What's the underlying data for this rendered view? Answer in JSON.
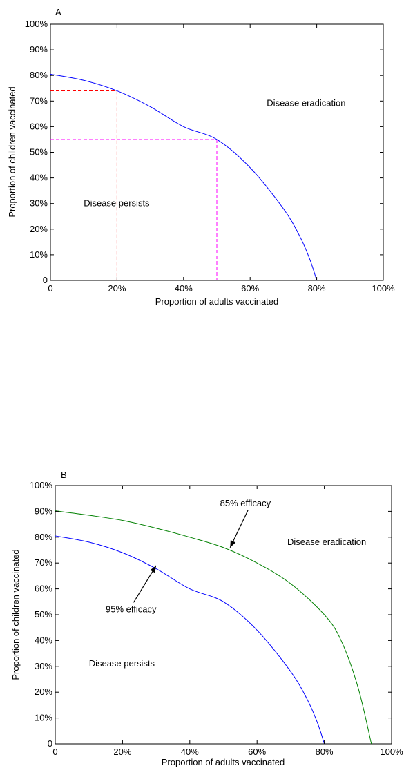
{
  "chart_data": [
    {
      "type": "line",
      "panel_label": "A",
      "xlabel": "Proportion of adults vaccinated",
      "ylabel": "Proportion of children vaccinated",
      "xlim": [
        0,
        100
      ],
      "ylim": [
        0,
        100
      ],
      "x_ticks": [
        0,
        20,
        40,
        60,
        80,
        100
      ],
      "x_tick_labels": [
        "0",
        "20%",
        "40%",
        "60%",
        "80%",
        "100%"
      ],
      "y_ticks": [
        0,
        10,
        20,
        30,
        40,
        50,
        60,
        70,
        80,
        90,
        100
      ],
      "y_tick_labels": [
        "0",
        "10%",
        "20%",
        "30%",
        "40%",
        "50%",
        "60%",
        "70%",
        "80%",
        "90%",
        "100%"
      ],
      "grid": false,
      "series": [
        {
          "color": "#0000ff",
          "x": [
            0,
            10,
            20,
            30,
            40,
            50,
            60,
            70,
            75,
            78,
            80
          ],
          "y": [
            80.5,
            78.1,
            74,
            67.8,
            60,
            55,
            44,
            28,
            17,
            8,
            0
          ]
        }
      ],
      "reference_lines": [
        {
          "color": "#ff0000",
          "x": 20,
          "y": 74
        },
        {
          "color": "#ff00ff",
          "x": 50,
          "y": 55
        }
      ],
      "annotations": [
        {
          "text": "Disease eradication",
          "x": 65,
          "y": 68
        },
        {
          "text": "Disease persists",
          "x": 10,
          "y": 29
        }
      ]
    },
    {
      "type": "line",
      "panel_label": "B",
      "xlabel": "Proportion of adults vaccinated",
      "ylabel": "Proportion of children vaccinated",
      "xlim": [
        0,
        100
      ],
      "ylim": [
        0,
        100
      ],
      "x_ticks": [
        0,
        20,
        40,
        60,
        80,
        100
      ],
      "x_tick_labels": [
        "0",
        "20%",
        "40%",
        "60%",
        "80%",
        "100%"
      ],
      "y_ticks": [
        0,
        10,
        20,
        30,
        40,
        50,
        60,
        70,
        80,
        90,
        100
      ],
      "y_tick_labels": [
        "0",
        "10%",
        "20%",
        "30%",
        "40%",
        "50%",
        "60%",
        "70%",
        "80%",
        "90%",
        "100%"
      ],
      "grid": false,
      "series": [
        {
          "color": "#008000",
          "x": [
            0,
            10,
            20,
            30,
            40,
            50,
            60,
            70,
            80,
            85,
            90,
            94
          ],
          "y": [
            90.2,
            88.5,
            86.5,
            83.5,
            80,
            76,
            70,
            62,
            50,
            40,
            22,
            0
          ]
        },
        {
          "color": "#0000ff",
          "x": [
            0,
            10,
            20,
            30,
            40,
            50,
            60,
            70,
            75,
            78,
            80
          ],
          "y": [
            80.5,
            78.1,
            74,
            67.8,
            60,
            55,
            44,
            28,
            17,
            8,
            0
          ]
        }
      ],
      "annotations": [
        {
          "text": "85% efficacy",
          "x": 49,
          "y": 92,
          "arrow_to": [
            52,
            76
          ]
        },
        {
          "text": "95% efficacy",
          "x": 15,
          "y": 51,
          "arrow_to": [
            30,
            69
          ]
        },
        {
          "text": "Disease eradication",
          "x": 69,
          "y": 77
        },
        {
          "text": "Disease persists",
          "x": 10,
          "y": 30
        }
      ]
    }
  ]
}
